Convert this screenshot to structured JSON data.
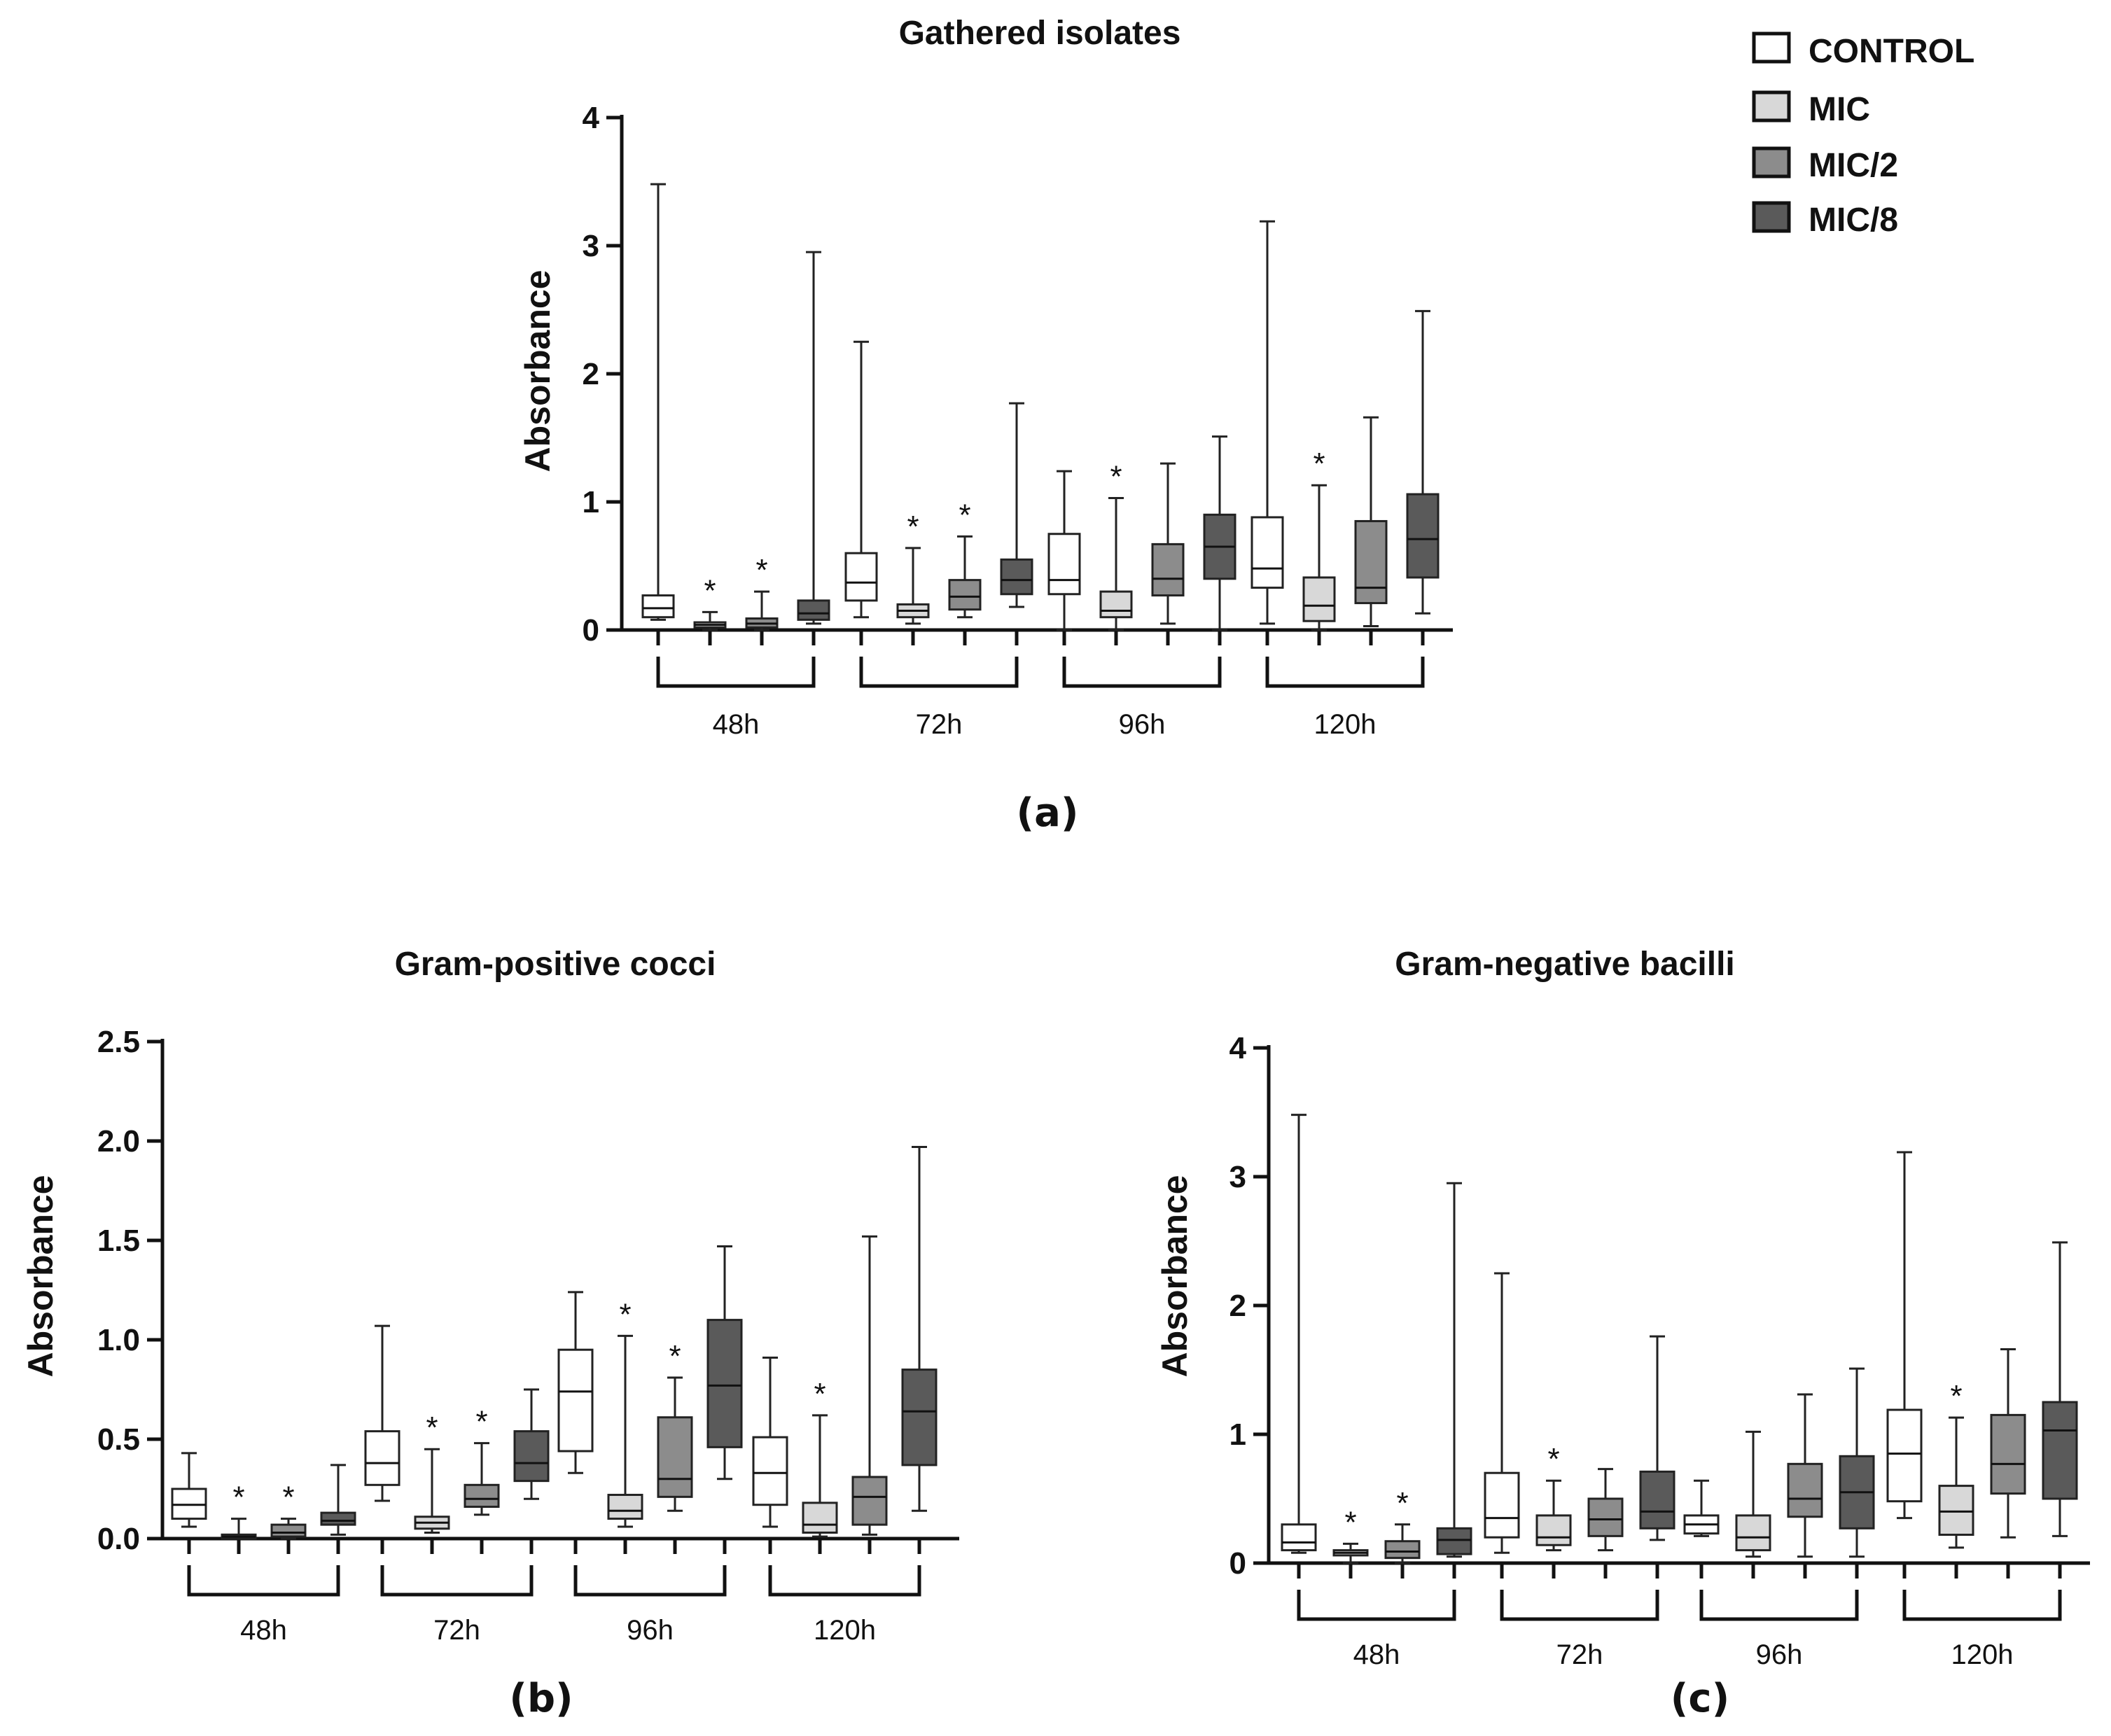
{
  "legend": {
    "items": [
      {
        "label": "CONTROL",
        "color": "#ffffff"
      },
      {
        "label": "MIC",
        "color": "#d8d8d8"
      },
      {
        "label": "MIC/2",
        "color": "#8c8c8c"
      },
      {
        "label": "MIC/8",
        "color": "#5a5a5a"
      }
    ]
  },
  "significance_marker": "*",
  "chart_data": [
    {
      "type": "boxplot",
      "panel_label": "(a)",
      "title": "Gathered isolates",
      "ylabel": "Absorbance",
      "xlabel": "",
      "ylim": [
        0,
        4
      ],
      "yticks": [
        0,
        1,
        2,
        3,
        4
      ],
      "ytick_labels": [
        "0",
        "1",
        "2",
        "3",
        "4"
      ],
      "groups": [
        "48h",
        "72h",
        "96h",
        "120h"
      ],
      "series": [
        "CONTROL",
        "MIC",
        "MIC/2",
        "MIC/8"
      ],
      "boxes": [
        {
          "group": "48h",
          "series": "CONTROL",
          "min": 0.08,
          "q1": 0.1,
          "median": 0.17,
          "q3": 0.27,
          "max": 3.48,
          "significant": false
        },
        {
          "group": "48h",
          "series": "MIC",
          "min": 0.0,
          "q1": 0.02,
          "median": 0.04,
          "q3": 0.06,
          "max": 0.14,
          "significant": true
        },
        {
          "group": "48h",
          "series": "MIC/2",
          "min": 0.0,
          "q1": 0.02,
          "median": 0.05,
          "q3": 0.09,
          "max": 0.3,
          "significant": true
        },
        {
          "group": "48h",
          "series": "MIC/8",
          "min": 0.05,
          "q1": 0.08,
          "median": 0.13,
          "q3": 0.23,
          "max": 2.95,
          "significant": false
        },
        {
          "group": "72h",
          "series": "CONTROL",
          "min": 0.1,
          "q1": 0.23,
          "median": 0.37,
          "q3": 0.6,
          "max": 2.25,
          "significant": false
        },
        {
          "group": "72h",
          "series": "MIC",
          "min": 0.05,
          "q1": 0.1,
          "median": 0.15,
          "q3": 0.2,
          "max": 0.64,
          "significant": true
        },
        {
          "group": "72h",
          "series": "MIC/2",
          "min": 0.1,
          "q1": 0.16,
          "median": 0.26,
          "q3": 0.39,
          "max": 0.73,
          "significant": true
        },
        {
          "group": "72h",
          "series": "MIC/8",
          "min": 0.18,
          "q1": 0.28,
          "median": 0.39,
          "q3": 0.55,
          "max": 1.77,
          "significant": false
        },
        {
          "group": "96h",
          "series": "CONTROL",
          "min": 0.0,
          "q1": 0.28,
          "median": 0.39,
          "q3": 0.75,
          "max": 1.24,
          "significant": false
        },
        {
          "group": "96h",
          "series": "MIC",
          "min": 0.0,
          "q1": 0.1,
          "median": 0.15,
          "q3": 0.3,
          "max": 1.03,
          "significant": true
        },
        {
          "group": "96h",
          "series": "MIC/2",
          "min": 0.05,
          "q1": 0.27,
          "median": 0.4,
          "q3": 0.67,
          "max": 1.3,
          "significant": false
        },
        {
          "group": "96h",
          "series": "MIC/8",
          "min": 0.0,
          "q1": 0.4,
          "median": 0.65,
          "q3": 0.9,
          "max": 1.51,
          "significant": false
        },
        {
          "group": "120h",
          "series": "CONTROL",
          "min": 0.05,
          "q1": 0.33,
          "median": 0.48,
          "q3": 0.88,
          "max": 3.19,
          "significant": false
        },
        {
          "group": "120h",
          "series": "MIC",
          "min": 0.0,
          "q1": 0.07,
          "median": 0.19,
          "q3": 0.41,
          "max": 1.13,
          "significant": true
        },
        {
          "group": "120h",
          "series": "MIC/2",
          "min": 0.03,
          "q1": 0.21,
          "median": 0.33,
          "q3": 0.85,
          "max": 1.66,
          "significant": false
        },
        {
          "group": "120h",
          "series": "MIC/8",
          "min": 0.13,
          "q1": 0.41,
          "median": 0.71,
          "q3": 1.06,
          "max": 2.49,
          "significant": false
        }
      ]
    },
    {
      "type": "boxplot",
      "panel_label": "(b)",
      "title": "Gram-positive cocci",
      "ylabel": "Absorbance",
      "xlabel": "",
      "ylim": [
        0,
        2.5
      ],
      "yticks": [
        0,
        0.5,
        1.0,
        1.5,
        2.0,
        2.5
      ],
      "ytick_labels": [
        "0.0",
        "0.5",
        "1.0",
        "1.5",
        "2.0",
        "2.5"
      ],
      "groups": [
        "48h",
        "72h",
        "96h",
        "120h"
      ],
      "series": [
        "CONTROL",
        "MIC",
        "MIC/2",
        "MIC/8"
      ],
      "boxes": [
        {
          "group": "48h",
          "series": "CONTROL",
          "min": 0.06,
          "q1": 0.1,
          "median": 0.17,
          "q3": 0.25,
          "max": 0.43,
          "significant": false
        },
        {
          "group": "48h",
          "series": "MIC",
          "min": 0.0,
          "q1": 0.0,
          "median": 0.01,
          "q3": 0.02,
          "max": 0.1,
          "significant": true
        },
        {
          "group": "48h",
          "series": "MIC/2",
          "min": 0.0,
          "q1": 0.01,
          "median": 0.03,
          "q3": 0.07,
          "max": 0.1,
          "significant": true
        },
        {
          "group": "48h",
          "series": "MIC/8",
          "min": 0.02,
          "q1": 0.07,
          "median": 0.09,
          "q3": 0.13,
          "max": 0.37,
          "significant": false
        },
        {
          "group": "72h",
          "series": "CONTROL",
          "min": 0.19,
          "q1": 0.27,
          "median": 0.38,
          "q3": 0.54,
          "max": 1.07,
          "significant": false
        },
        {
          "group": "72h",
          "series": "MIC",
          "min": 0.03,
          "q1": 0.05,
          "median": 0.08,
          "q3": 0.11,
          "max": 0.45,
          "significant": true
        },
        {
          "group": "72h",
          "series": "MIC/2",
          "min": 0.12,
          "q1": 0.16,
          "median": 0.2,
          "q3": 0.27,
          "max": 0.48,
          "significant": true
        },
        {
          "group": "72h",
          "series": "MIC/8",
          "min": 0.2,
          "q1": 0.29,
          "median": 0.38,
          "q3": 0.54,
          "max": 0.75,
          "significant": false
        },
        {
          "group": "96h",
          "series": "CONTROL",
          "min": 0.33,
          "q1": 0.44,
          "median": 0.74,
          "q3": 0.95,
          "max": 1.24,
          "significant": false
        },
        {
          "group": "96h",
          "series": "MIC",
          "min": 0.06,
          "q1": 0.1,
          "median": 0.14,
          "q3": 0.22,
          "max": 1.02,
          "significant": true
        },
        {
          "group": "96h",
          "series": "MIC/2",
          "min": 0.14,
          "q1": 0.21,
          "median": 0.3,
          "q3": 0.61,
          "max": 0.81,
          "significant": true
        },
        {
          "group": "96h",
          "series": "MIC/8",
          "min": 0.3,
          "q1": 0.46,
          "median": 0.77,
          "q3": 1.1,
          "max": 1.47,
          "significant": false
        },
        {
          "group": "120h",
          "series": "CONTROL",
          "min": 0.06,
          "q1": 0.17,
          "median": 0.33,
          "q3": 0.51,
          "max": 0.91,
          "significant": false
        },
        {
          "group": "120h",
          "series": "MIC",
          "min": 0.01,
          "q1": 0.03,
          "median": 0.07,
          "q3": 0.18,
          "max": 0.62,
          "significant": true
        },
        {
          "group": "120h",
          "series": "MIC/2",
          "min": 0.02,
          "q1": 0.07,
          "median": 0.21,
          "q3": 0.31,
          "max": 1.52,
          "significant": false
        },
        {
          "group": "120h",
          "series": "MIC/8",
          "min": 0.14,
          "q1": 0.37,
          "median": 0.64,
          "q3": 0.85,
          "max": 1.97,
          "significant": false
        }
      ]
    },
    {
      "type": "boxplot",
      "panel_label": "(c)",
      "title": "Gram-negative bacilli",
      "ylabel": "Absorbance",
      "xlabel": "",
      "ylim": [
        0,
        4
      ],
      "yticks": [
        0,
        1,
        2,
        3,
        4
      ],
      "ytick_labels": [
        "0",
        "1",
        "2",
        "3",
        "4"
      ],
      "groups": [
        "48h",
        "72h",
        "96h",
        "120h"
      ],
      "series": [
        "CONTROL",
        "MIC",
        "MIC/2",
        "MIC/8"
      ],
      "boxes": [
        {
          "group": "48h",
          "series": "CONTROL",
          "min": 0.08,
          "q1": 0.1,
          "median": 0.16,
          "q3": 0.3,
          "max": 3.48,
          "significant": false
        },
        {
          "group": "48h",
          "series": "MIC",
          "min": 0.0,
          "q1": 0.06,
          "median": 0.08,
          "q3": 0.1,
          "max": 0.15,
          "significant": true
        },
        {
          "group": "48h",
          "series": "MIC/2",
          "min": 0.0,
          "q1": 0.04,
          "median": 0.09,
          "q3": 0.17,
          "max": 0.3,
          "significant": true
        },
        {
          "group": "48h",
          "series": "MIC/8",
          "min": 0.05,
          "q1": 0.07,
          "median": 0.18,
          "q3": 0.27,
          "max": 2.95,
          "significant": false
        },
        {
          "group": "72h",
          "series": "CONTROL",
          "min": 0.08,
          "q1": 0.2,
          "median": 0.35,
          "q3": 0.7,
          "max": 2.25,
          "significant": false
        },
        {
          "group": "72h",
          "series": "MIC",
          "min": 0.1,
          "q1": 0.14,
          "median": 0.2,
          "q3": 0.37,
          "max": 0.64,
          "significant": true
        },
        {
          "group": "72h",
          "series": "MIC/2",
          "min": 0.1,
          "q1": 0.21,
          "median": 0.34,
          "q3": 0.5,
          "max": 0.73,
          "significant": false
        },
        {
          "group": "72h",
          "series": "MIC/8",
          "min": 0.18,
          "q1": 0.27,
          "median": 0.4,
          "q3": 0.71,
          "max": 1.76,
          "significant": false
        },
        {
          "group": "96h",
          "series": "CONTROL",
          "min": 0.21,
          "q1": 0.23,
          "median": 0.3,
          "q3": 0.37,
          "max": 0.64,
          "significant": false
        },
        {
          "group": "96h",
          "series": "MIC",
          "min": 0.05,
          "q1": 0.1,
          "median": 0.2,
          "q3": 0.37,
          "max": 1.02,
          "significant": false
        },
        {
          "group": "96h",
          "series": "MIC/2",
          "min": 0.05,
          "q1": 0.36,
          "median": 0.5,
          "q3": 0.77,
          "max": 1.31,
          "significant": false
        },
        {
          "group": "96h",
          "series": "MIC/8",
          "min": 0.05,
          "q1": 0.27,
          "median": 0.55,
          "q3": 0.83,
          "max": 1.51,
          "significant": false
        },
        {
          "group": "120h",
          "series": "CONTROL",
          "min": 0.35,
          "q1": 0.48,
          "median": 0.85,
          "q3": 1.19,
          "max": 3.19,
          "significant": false
        },
        {
          "group": "120h",
          "series": "MIC",
          "min": 0.12,
          "q1": 0.22,
          "median": 0.4,
          "q3": 0.6,
          "max": 1.13,
          "significant": true
        },
        {
          "group": "120h",
          "series": "MIC/2",
          "min": 0.2,
          "q1": 0.54,
          "median": 0.77,
          "q3": 1.15,
          "max": 1.66,
          "significant": false
        },
        {
          "group": "120h",
          "series": "MIC/8",
          "min": 0.21,
          "q1": 0.5,
          "median": 1.03,
          "q3": 1.25,
          "max": 2.49,
          "significant": false
        }
      ]
    }
  ]
}
